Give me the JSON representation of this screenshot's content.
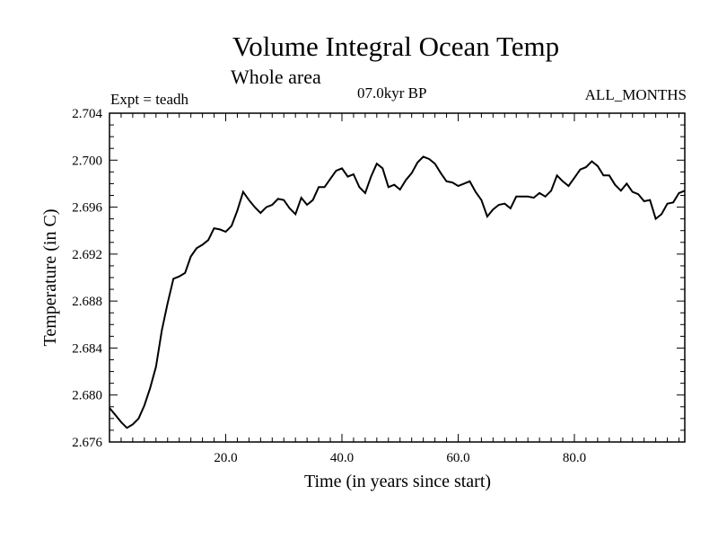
{
  "chart_data": {
    "type": "line",
    "title": "Volume Integral Ocean Temp",
    "subtitle": "Whole area",
    "annotations": {
      "experiment": "Expt = teadh",
      "period": "07.0kyr BP",
      "months": "ALL_MONTHS"
    },
    "xlabel": "Time (in years since start)",
    "ylabel": "Temperature (in C)",
    "xlim": [
      0,
      99
    ],
    "ylim": [
      2.676,
      2.704
    ],
    "xticks": [
      20,
      40,
      60,
      80
    ],
    "xtick_labels": [
      "20.0",
      "40.0",
      "60.0",
      "80.0"
    ],
    "yticks": [
      2.676,
      2.68,
      2.684,
      2.688,
      2.692,
      2.696,
      2.7,
      2.704
    ],
    "ytick_labels": [
      "2.676",
      "2.680",
      "2.684",
      "2.688",
      "2.692",
      "2.696",
      "2.700",
      "2.704"
    ],
    "grid": false,
    "series": [
      {
        "name": "Volume Integral Ocean Temp",
        "x": [
          0,
          1,
          2,
          3,
          4,
          5,
          6,
          7,
          8,
          9,
          10,
          11,
          12,
          13,
          14,
          15,
          16,
          17,
          18,
          19,
          20,
          21,
          22,
          23,
          24,
          25,
          26,
          27,
          28,
          29,
          30,
          31,
          32,
          33,
          34,
          35,
          36,
          37,
          38,
          39,
          40,
          41,
          42,
          43,
          44,
          45,
          46,
          47,
          48,
          49,
          50,
          51,
          52,
          53,
          54,
          55,
          56,
          57,
          58,
          59,
          60,
          61,
          62,
          63,
          64,
          65,
          66,
          67,
          68,
          69,
          70,
          71,
          72,
          73,
          74,
          75,
          76,
          77,
          78,
          79,
          80,
          81,
          82,
          83,
          84,
          85,
          86,
          87,
          88,
          89,
          90,
          91,
          92,
          93,
          94,
          95,
          96,
          97,
          98,
          99
        ],
        "values": [
          2.6789,
          2.6783,
          2.6777,
          2.6772,
          2.6775,
          2.678,
          2.6791,
          2.6806,
          2.6824,
          2.6855,
          2.6878,
          2.6899,
          2.6901,
          2.6904,
          2.6918,
          2.6925,
          2.6928,
          2.6932,
          2.6942,
          2.6941,
          2.6939,
          2.6944,
          2.6957,
          2.6973,
          2.6966,
          2.696,
          2.6955,
          2.696,
          2.6962,
          2.6967,
          2.6966,
          2.6959,
          2.6954,
          2.6968,
          2.6962,
          2.6966,
          2.6977,
          2.6977,
          2.6984,
          2.6991,
          2.6993,
          2.6986,
          2.6988,
          2.6977,
          2.6972,
          2.6986,
          2.6997,
          2.6993,
          2.6977,
          2.6979,
          2.6975,
          2.6983,
          2.6989,
          2.6998,
          2.7003,
          2.7001,
          2.6997,
          2.6989,
          2.6982,
          2.6981,
          2.6978,
          2.698,
          2.6982,
          2.6973,
          2.6966,
          2.6952,
          2.6958,
          2.6962,
          2.6963,
          2.6959,
          2.6969,
          2.6969,
          2.6969,
          2.6968,
          2.6972,
          2.6969,
          2.6974,
          2.6987,
          2.6982,
          2.6978,
          2.6985,
          2.6992,
          2.6994,
          2.6999,
          2.6995,
          2.6987,
          2.6987,
          2.6979,
          2.6974,
          2.698,
          2.6973,
          2.6971,
          2.6965,
          2.6966,
          2.695,
          2.6954,
          2.6963,
          2.6964,
          2.6972,
          2.6974
        ]
      }
    ]
  }
}
